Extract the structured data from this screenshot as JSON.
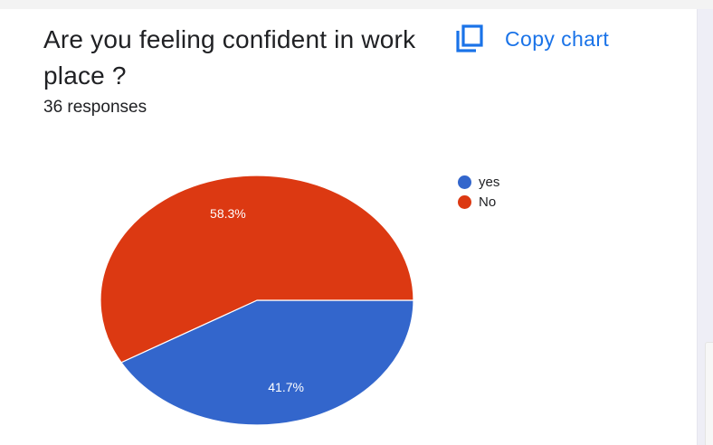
{
  "question": {
    "title": "Are you feeling confident in work place ?",
    "responses": "36 responses"
  },
  "copy_chart": {
    "label": "Copy chart",
    "icon": "copy-icon"
  },
  "colors": {
    "accent": "#1a73e8",
    "yes": "#3366cc",
    "no": "#dc3912"
  },
  "chart_data": {
    "type": "pie",
    "start_angle": 90,
    "slices": [
      {
        "label": "yes",
        "value": 41.7,
        "color": "#3366cc",
        "data_label": "41.7%"
      },
      {
        "label": "No",
        "value": 58.3,
        "color": "#dc3912",
        "data_label": "58.3%"
      }
    ],
    "legend": {
      "position": "right",
      "entries": [
        "yes",
        "No"
      ]
    }
  }
}
